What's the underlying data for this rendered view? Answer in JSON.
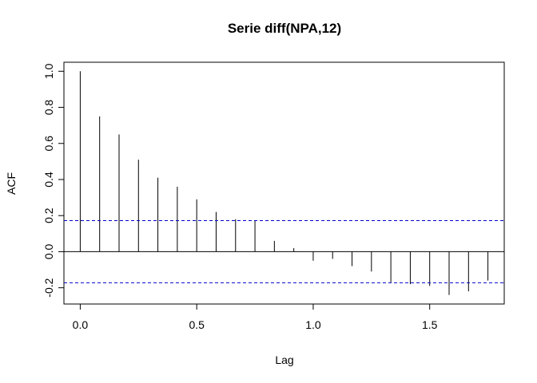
{
  "chart_data": {
    "type": "bar",
    "title": "Serie diff(NPA,12)",
    "xlabel": "Lag",
    "ylabel": "ACF",
    "x": [
      0,
      0.0833,
      0.1667,
      0.25,
      0.3333,
      0.4167,
      0.5,
      0.5833,
      0.6667,
      0.75,
      0.8333,
      0.9167,
      1.0,
      1.0833,
      1.1667,
      1.25,
      1.3333,
      1.4167,
      1.5,
      1.5833,
      1.6667,
      1.75
    ],
    "values": [
      1.0,
      0.75,
      0.65,
      0.51,
      0.41,
      0.36,
      0.29,
      0.22,
      0.18,
      0.17,
      0.06,
      0.02,
      -0.05,
      -0.04,
      -0.08,
      -0.11,
      -0.17,
      -0.18,
      -0.19,
      -0.24,
      -0.22,
      -0.16
    ],
    "xlim": [
      -0.07,
      1.82
    ],
    "ylim": [
      -0.29,
      1.05
    ],
    "xticks": [
      "0.0",
      "0.5",
      "1.0",
      "1.5"
    ],
    "yticks": [
      "-0.2",
      "0.0",
      "0.2",
      "0.4",
      "0.6",
      "0.8",
      "1.0"
    ],
    "confidence_bound": 0.172,
    "colors": {
      "spikes": "#000000",
      "zero_line": "#000000",
      "bounds": "#0000CC"
    }
  }
}
